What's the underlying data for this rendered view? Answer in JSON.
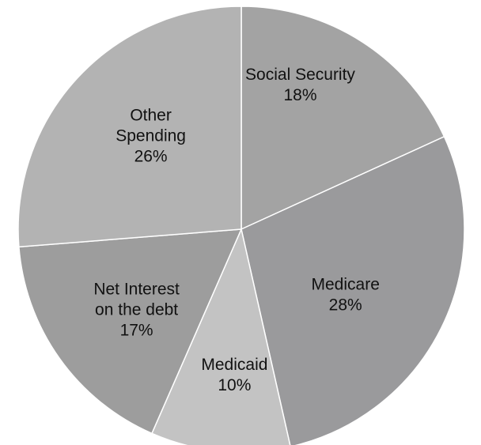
{
  "chart_data": {
    "type": "pie",
    "slices": [
      {
        "name": "Social Security",
        "value": 18,
        "label_lines": [
          "Social Security",
          "18%"
        ],
        "color": "#a3a3a3"
      },
      {
        "name": "Medicare",
        "value": 28,
        "label_lines": [
          "Medicare",
          "28%"
        ],
        "color": "#9a9a9c"
      },
      {
        "name": "Medicaid",
        "value": 10,
        "label_lines": [
          "Medicaid",
          "10%"
        ],
        "color": "#c3c3c3"
      },
      {
        "name": "Net Interest on the debt",
        "value": 17,
        "label_lines": [
          "Net Interest",
          "on the debt",
          "17%"
        ],
        "color": "#9d9d9d"
      },
      {
        "name": "Other Spending",
        "value": 26,
        "label_lines": [
          "Other",
          "Spending",
          "26%"
        ],
        "color": "#b3b3b3"
      }
    ],
    "start_angle_deg": 0,
    "direction": "clockwise"
  }
}
